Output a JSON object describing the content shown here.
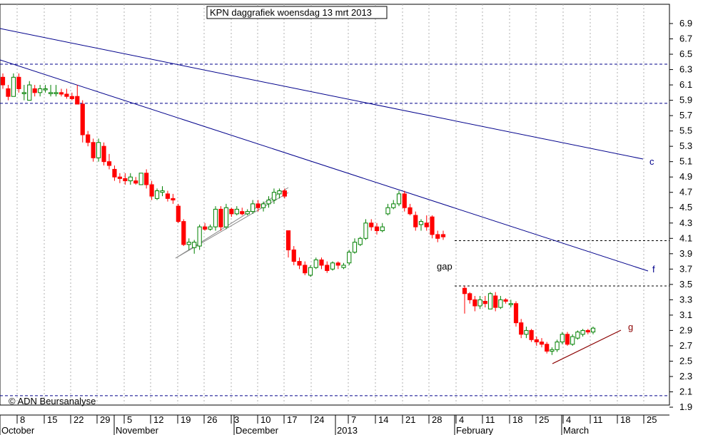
{
  "chart_data": {
    "type": "candlestick",
    "title": "KPN daggrafiek woensdag 13 mrt 2013",
    "watermark": "© ADN Beursanalyse",
    "y_range": [
      1.8,
      7.2
    ],
    "y_ticks": [
      "1.9",
      "2.1",
      "2.3",
      "2.5",
      "2.7",
      "2.9",
      "3.1",
      "3.3",
      "3.5",
      "3.7",
      "3.9",
      "4.1",
      "4.3",
      "4.5",
      "4.7",
      "4.9",
      "5.1",
      "5.3",
      "5.5",
      "5.7",
      "5.9",
      "6.1",
      "6.3",
      "6.5",
      "6.7",
      "6.9"
    ],
    "x_ticks": [
      "8",
      "15",
      "22",
      "29",
      "5",
      "12",
      "19",
      "26",
      "3",
      "10",
      "17",
      "24",
      "7",
      "14",
      "21",
      "28",
      "4",
      "11",
      "18",
      "25",
      "4",
      "11",
      "18",
      "25"
    ],
    "months": [
      "October",
      "November",
      "December",
      "2013",
      "February",
      "March"
    ],
    "colors": {
      "up": "#008000",
      "down": "#ff0000",
      "trend": "#00008b",
      "support": "#8b0000",
      "grid": "#b0b0b0"
    },
    "candles": [
      [
        6.2,
        6.25,
        6.05,
        6.1
      ],
      [
        6.05,
        6.1,
        5.9,
        5.95
      ],
      [
        5.95,
        6.25,
        5.95,
        6.2
      ],
      [
        6.2,
        6.25,
        6.0,
        6.05
      ],
      [
        6.0,
        6.1,
        5.9,
        6.0
      ],
      [
        5.9,
        6.15,
        5.9,
        6.1
      ],
      [
        6.05,
        6.1,
        5.95,
        6.0
      ],
      [
        6.0,
        6.1,
        5.95,
        6.05
      ],
      [
        6.05,
        6.1,
        6.0,
        6.05
      ],
      [
        6.0,
        6.1,
        5.95,
        6.0
      ],
      [
        6.0,
        6.1,
        5.95,
        6.0
      ],
      [
        6.0,
        6.05,
        5.95,
        5.98
      ],
      [
        5.98,
        6.05,
        5.92,
        5.95
      ],
      [
        5.95,
        6.0,
        5.9,
        5.92
      ],
      [
        5.95,
        6.1,
        5.9,
        5.85
      ],
      [
        5.85,
        5.9,
        5.35,
        5.45
      ],
      [
        5.45,
        5.5,
        5.3,
        5.35
      ],
      [
        5.35,
        5.4,
        5.1,
        5.15
      ],
      [
        5.15,
        5.4,
        5.1,
        5.35
      ],
      [
        5.3,
        5.35,
        5.05,
        5.1
      ],
      [
        5.1,
        5.2,
        5.0,
        5.05
      ],
      [
        5.0,
        5.05,
        4.85,
        4.9
      ],
      [
        4.9,
        4.95,
        4.82,
        4.88
      ],
      [
        4.88,
        4.95,
        4.8,
        4.85
      ],
      [
        4.85,
        4.95,
        4.8,
        4.9
      ],
      [
        4.85,
        4.9,
        4.8,
        4.82
      ],
      [
        4.8,
        4.95,
        4.8,
        4.95
      ],
      [
        4.95,
        5.0,
        4.75,
        4.8
      ],
      [
        4.8,
        4.85,
        4.6,
        4.65
      ],
      [
        4.62,
        4.75,
        4.6,
        4.72
      ],
      [
        4.7,
        4.78,
        4.65,
        4.72
      ],
      [
        4.68,
        4.72,
        4.58,
        4.62
      ],
      [
        4.62,
        4.68,
        4.55,
        4.6
      ],
      [
        4.52,
        4.55,
        4.3,
        4.32
      ],
      [
        4.32,
        4.35,
        4.0,
        4.02
      ],
      [
        4.02,
        4.1,
        3.95,
        4.05
      ],
      [
        3.98,
        4.08,
        3.9,
        4.05
      ],
      [
        4.0,
        4.28,
        3.95,
        4.25
      ],
      [
        4.25,
        4.3,
        4.2,
        4.22
      ],
      [
        4.22,
        4.28,
        4.2,
        4.25
      ],
      [
        4.25,
        4.52,
        4.2,
        4.48
      ],
      [
        4.48,
        4.52,
        4.2,
        4.25
      ],
      [
        4.25,
        4.55,
        4.22,
        4.5
      ],
      [
        4.48,
        4.5,
        4.38,
        4.42
      ],
      [
        4.42,
        4.52,
        4.4,
        4.48
      ],
      [
        4.45,
        4.5,
        4.4,
        4.42
      ],
      [
        4.42,
        4.48,
        4.4,
        4.45
      ],
      [
        4.45,
        4.6,
        4.42,
        4.55
      ],
      [
        4.55,
        4.6,
        4.45,
        4.5
      ],
      [
        4.5,
        4.58,
        4.45,
        4.55
      ],
      [
        4.55,
        4.65,
        4.5,
        4.6
      ],
      [
        4.6,
        4.75,
        4.55,
        4.7
      ],
      [
        4.68,
        4.75,
        4.62,
        4.72
      ],
      [
        4.72,
        4.75,
        4.62,
        4.65
      ],
      [
        4.2,
        4.2,
        3.85,
        3.95
      ],
      [
        3.95,
        4.0,
        3.75,
        3.8
      ],
      [
        3.8,
        3.85,
        3.7,
        3.75
      ],
      [
        3.75,
        3.8,
        3.62,
        3.65
      ],
      [
        3.62,
        3.75,
        3.6,
        3.72
      ],
      [
        3.72,
        3.85,
        3.7,
        3.82
      ],
      [
        3.82,
        3.85,
        3.7,
        3.75
      ],
      [
        3.75,
        3.8,
        3.65,
        3.68
      ],
      [
        3.7,
        3.8,
        3.68,
        3.78
      ],
      [
        3.78,
        3.8,
        3.7,
        3.75
      ],
      [
        3.72,
        3.78,
        3.7,
        3.75
      ],
      [
        3.78,
        3.95,
        3.75,
        3.92
      ],
      [
        3.92,
        4.1,
        3.9,
        4.05
      ],
      [
        4.02,
        4.12,
        4.0,
        4.1
      ],
      [
        4.1,
        4.35,
        4.08,
        4.3
      ],
      [
        4.3,
        4.35,
        4.2,
        4.25
      ],
      [
        4.25,
        4.3,
        4.15,
        4.2
      ],
      [
        4.2,
        4.3,
        4.18,
        4.25
      ],
      [
        4.42,
        4.55,
        4.4,
        4.5
      ],
      [
        4.5,
        4.6,
        4.48,
        4.55
      ],
      [
        4.55,
        4.72,
        4.52,
        4.68
      ],
      [
        4.68,
        4.72,
        4.45,
        4.5
      ],
      [
        4.5,
        4.55,
        4.4,
        4.42
      ],
      [
        4.4,
        4.45,
        4.2,
        4.25
      ],
      [
        4.28,
        4.35,
        4.2,
        4.32
      ],
      [
        4.3,
        4.4,
        4.2,
        4.25
      ],
      [
        4.38,
        4.4,
        4.1,
        4.15
      ],
      [
        4.15,
        4.2,
        4.05,
        4.1
      ],
      [
        4.15,
        4.2,
        4.08,
        4.12
      ],
      [
        3.45,
        3.48,
        3.12,
        3.38
      ],
      [
        3.38,
        3.4,
        3.25,
        3.3
      ],
      [
        3.3,
        3.35,
        3.15,
        3.22
      ],
      [
        3.22,
        3.35,
        3.18,
        3.3
      ],
      [
        3.28,
        3.35,
        3.2,
        3.25
      ],
      [
        3.18,
        3.4,
        3.18,
        3.38
      ],
      [
        3.35,
        3.4,
        3.15,
        3.2
      ],
      [
        3.2,
        3.35,
        3.18,
        3.3
      ],
      [
        3.3,
        3.32,
        3.25,
        3.28
      ],
      [
        3.25,
        3.3,
        3.2,
        3.25
      ],
      [
        3.25,
        3.28,
        2.95,
        3.0
      ],
      [
        3.0,
        3.05,
        2.8,
        2.85
      ],
      [
        2.85,
        2.95,
        2.8,
        2.9
      ],
      [
        2.9,
        2.92,
        2.75,
        2.78
      ],
      [
        2.78,
        2.82,
        2.7,
        2.75
      ],
      [
        2.75,
        2.8,
        2.68,
        2.72
      ],
      [
        2.72,
        2.75,
        2.6,
        2.63
      ],
      [
        2.63,
        2.68,
        2.58,
        2.65
      ],
      [
        2.65,
        2.78,
        2.62,
        2.75
      ],
      [
        2.75,
        2.88,
        2.72,
        2.85
      ],
      [
        2.85,
        2.88,
        2.7,
        2.72
      ],
      [
        2.72,
        2.85,
        2.7,
        2.82
      ],
      [
        2.8,
        2.9,
        2.78,
        2.88
      ],
      [
        2.85,
        2.92,
        2.82,
        2.9
      ],
      [
        2.9,
        2.92,
        2.85,
        2.88
      ],
      [
        2.88,
        2.95,
        2.85,
        2.93
      ]
    ],
    "annotations": {
      "c": "c",
      "f": "f",
      "g": "g",
      "gap": "gap"
    }
  }
}
